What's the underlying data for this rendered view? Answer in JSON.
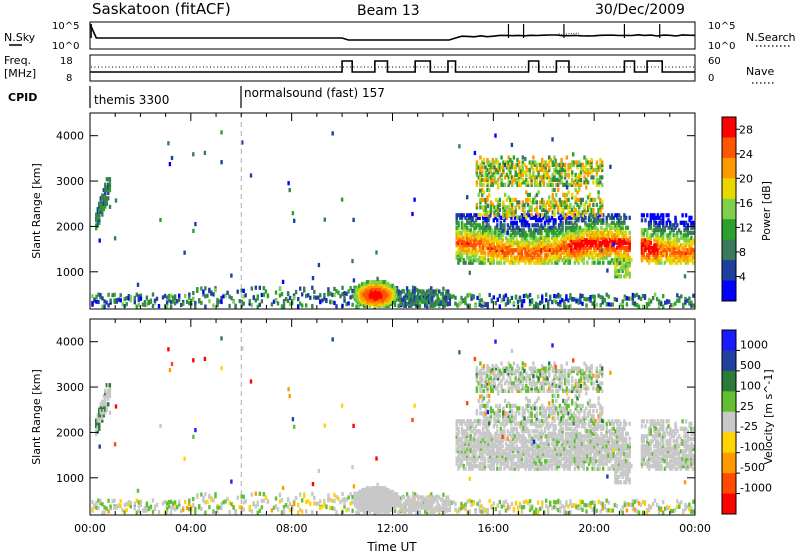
{
  "header": {
    "station": "Saskatoon (fitACF)",
    "beam": "Beam 13",
    "date": "30/Dec/2009"
  },
  "panels": {
    "nsky": {
      "left_label": "N.Sky",
      "right_label": "N.Search",
      "left_ticks": [
        "10^5",
        "10^0"
      ],
      "right_ticks": [
        "10^5",
        "10^0"
      ]
    },
    "freq": {
      "left_label_1": "Freq.",
      "left_label_2": "[MHz]",
      "right_label": "Nave",
      "left_ticks": [
        "18",
        "8"
      ],
      "right_ticks": [
        "60",
        "0"
      ]
    },
    "cpid": {
      "label": "CPID",
      "modes": [
        {
          "name": "themis 3300",
          "start_hour": 0
        },
        {
          "name": "normalsound (fast) 157",
          "start_hour": 6
        }
      ]
    }
  },
  "colors": {
    "power_scale": [
      "#0000ff",
      "#1f3fa0",
      "#3a7a5a",
      "#2ca02c",
      "#7fd04a",
      "#e8d800",
      "#ff9900",
      "#ff5500",
      "#ff0000"
    ],
    "velocity_scale": [
      "#1a1aff",
      "#2040a0",
      "#2a7a3a",
      "#60c030",
      "#c8c8c8",
      "#ffd400",
      "#ff9a00",
      "#ff4a00",
      "#ff0000"
    ]
  },
  "chart_data": [
    {
      "type": "heatmap",
      "title": "Power",
      "xlabel": "Time UT",
      "ylabel": "Slant Range [km]",
      "x_ticks": [
        "00:00",
        "04:00",
        "08:00",
        "12:00",
        "16:00",
        "20:00",
        "00:00"
      ],
      "xlim_hours": [
        0,
        24
      ],
      "y_ticks": [
        1000,
        2000,
        3000,
        4000
      ],
      "ylim": [
        180,
        4500
      ],
      "colorbar": {
        "label": "Power [dB]",
        "ticks": [
          4,
          8,
          12,
          16,
          20,
          24,
          28
        ],
        "range": [
          0,
          30
        ]
      },
      "reference_line_hour": 6
    },
    {
      "type": "heatmap",
      "title": "Velocity",
      "xlabel": "Time UT",
      "ylabel": "Slant Range [km]",
      "x_ticks": [
        "00:00",
        "04:00",
        "08:00",
        "12:00",
        "16:00",
        "20:00",
        "00:00"
      ],
      "xlim_hours": [
        0,
        24
      ],
      "y_ticks": [
        1000,
        2000,
        3000,
        4000
      ],
      "ylim": [
        180,
        4500
      ],
      "colorbar": {
        "label": "Velocity [m s^-1]",
        "ticks": [
          "1000",
          "500",
          "100",
          "25",
          "-25",
          "-100",
          "-500",
          "-1000"
        ]
      },
      "reference_line_hour": 6
    }
  ]
}
